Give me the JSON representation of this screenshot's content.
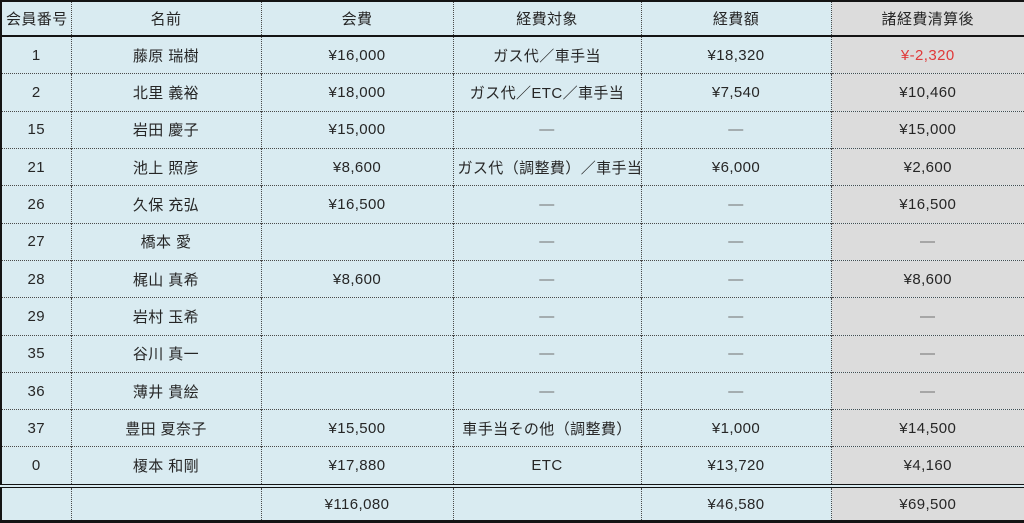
{
  "colors": {
    "cell_blue": "#d9ebf1",
    "cell_gray": "#dcdcdc",
    "border_dark": "#141414",
    "grid_dot": "#4a4a4a",
    "text": "#262626",
    "dash": "#6f6f6f",
    "negative": "#e03a3a"
  },
  "table": {
    "headers": [
      "会員番号",
      "名前",
      "会費",
      "経費対象",
      "経費額",
      "諸経費清算後"
    ],
    "rows": [
      {
        "cells": [
          "1",
          "藤原 瑞樹",
          "¥16,000",
          "ガス代／車手当",
          "¥18,320",
          "¥-2,320"
        ],
        "negative": true
      },
      {
        "cells": [
          "2",
          "北里 義裕",
          "¥18,000",
          "ガス代／ETC／車手当",
          "¥7,540",
          "¥10,460"
        ]
      },
      {
        "cells": [
          "15",
          "岩田 慶子",
          "¥15,000",
          "—",
          "—",
          "¥15,000"
        ]
      },
      {
        "cells": [
          "21",
          "池上 照彦",
          "¥8,600",
          "ガス代（調整費）／車手当",
          "¥6,000",
          "¥2,600"
        ]
      },
      {
        "cells": [
          "26",
          "久保 充弘",
          "¥16,500",
          "—",
          "—",
          "¥16,500"
        ]
      },
      {
        "cells": [
          "27",
          "橋本 愛",
          "",
          "—",
          "—",
          "—"
        ]
      },
      {
        "cells": [
          "28",
          "梶山 真希",
          "¥8,600",
          "—",
          "—",
          "¥8,600"
        ]
      },
      {
        "cells": [
          "29",
          "岩村 玉希",
          "",
          "—",
          "—",
          "—"
        ]
      },
      {
        "cells": [
          "35",
          "谷川 真一",
          "",
          "—",
          "—",
          "—"
        ]
      },
      {
        "cells": [
          "36",
          "薄井 貴絵",
          "",
          "—",
          "—",
          "—"
        ]
      },
      {
        "cells": [
          "37",
          "豊田 夏奈子",
          "¥15,500",
          "車手当その他（調整費）",
          "¥1,000",
          "¥14,500"
        ]
      },
      {
        "cells": [
          "0",
          "榎本 和剛",
          "¥17,880",
          "ETC",
          "¥13,720",
          "¥4,160"
        ]
      }
    ],
    "total_row": {
      "cells": [
        "",
        "",
        "¥116,080",
        "",
        "¥46,580",
        "¥69,500"
      ]
    }
  }
}
